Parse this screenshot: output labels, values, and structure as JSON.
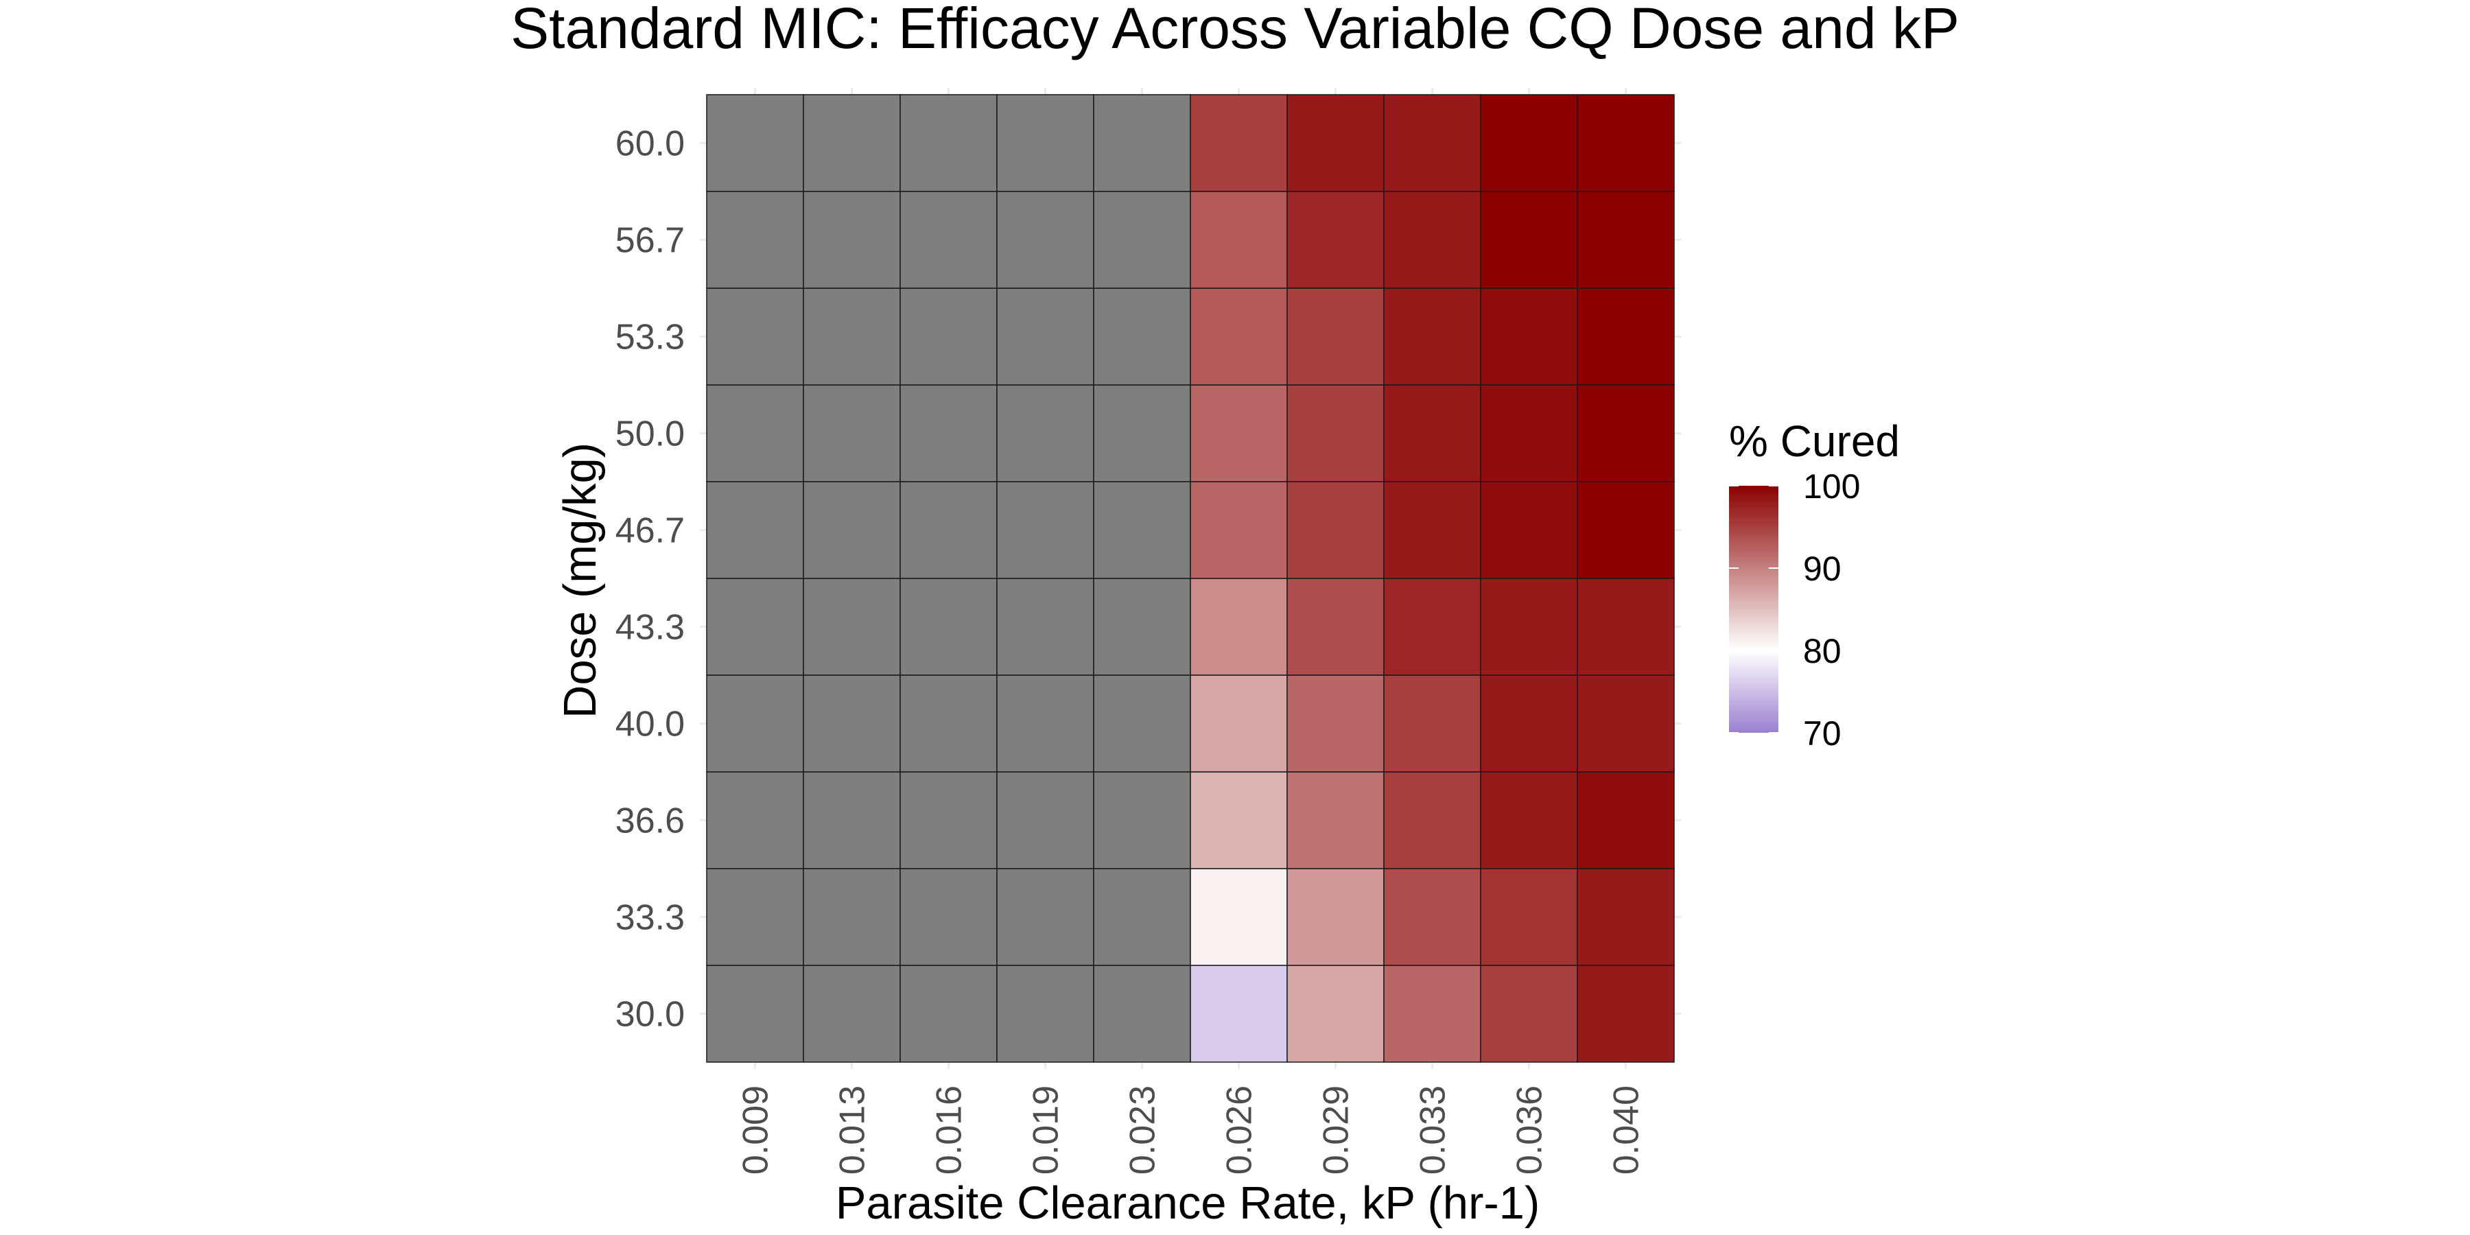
{
  "chart_data": {
    "type": "heatmap",
    "title": "Standard MIC: Efficacy Across Variable CQ Dose and kP",
    "xlabel": "Parasite Clearance Rate, kP (hr-1)",
    "ylabel": "Dose (mg/kg)",
    "x": [
      "0.009",
      "0.013",
      "0.016",
      "0.019",
      "0.023",
      "0.026",
      "0.029",
      "0.033",
      "0.036",
      "0.040"
    ],
    "y": [
      "30.0",
      "33.3",
      "36.6",
      "40.0",
      "43.3",
      "46.7",
      "50.0",
      "53.3",
      "56.7",
      "60.0"
    ],
    "values_note_missing": null,
    "values": [
      [
        null,
        null,
        null,
        null,
        null,
        76,
        87,
        92,
        95,
        98
      ],
      [
        null,
        null,
        null,
        null,
        null,
        81,
        88,
        94,
        96,
        98
      ],
      [
        null,
        null,
        null,
        null,
        null,
        86,
        91,
        95,
        98,
        99
      ],
      [
        null,
        null,
        null,
        null,
        null,
        87,
        92,
        95,
        98,
        98
      ],
      [
        null,
        null,
        null,
        null,
        null,
        89,
        94,
        97,
        98,
        98
      ],
      [
        null,
        null,
        null,
        null,
        null,
        92,
        95,
        98,
        99,
        100
      ],
      [
        null,
        null,
        null,
        null,
        null,
        92,
        95,
        98,
        99,
        100
      ],
      [
        null,
        null,
        null,
        null,
        null,
        93,
        95,
        98,
        99,
        100
      ],
      [
        null,
        null,
        null,
        null,
        null,
        93,
        97,
        98,
        100,
        100
      ],
      [
        null,
        null,
        null,
        null,
        null,
        95,
        98,
        98,
        100,
        100
      ]
    ],
    "na_color": "#7f7f7f",
    "legend": {
      "title": "% Cured",
      "ticks": [
        100,
        90,
        80,
        70
      ],
      "range": [
        70,
        100
      ],
      "midpoint": 80,
      "low_color": "#9a7fd0",
      "mid_color": "#ffffff",
      "high_color": "#8b0000",
      "placement": "right"
    },
    "grid": true
  }
}
